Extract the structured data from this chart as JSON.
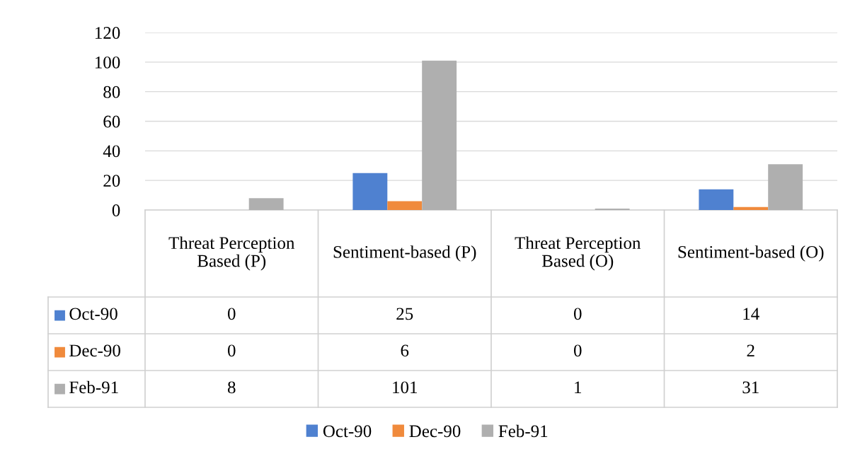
{
  "chart_data": {
    "type": "bar",
    "categories": [
      "Threat Perception Based (P)",
      "Sentiment-based (P)",
      "Threat Perception Based (O)",
      "Sentiment-based (O)"
    ],
    "series": [
      {
        "name": "Oct-90",
        "color": "#4f81d0",
        "values": [
          0,
          25,
          0,
          14
        ]
      },
      {
        "name": "Dec-90",
        "color": "#f08a3c",
        "values": [
          0,
          6,
          0,
          2
        ]
      },
      {
        "name": "Feb-91",
        "color": "#afafaf",
        "values": [
          8,
          101,
          1,
          31
        ]
      }
    ],
    "ylim": [
      0,
      120
    ],
    "yticks": [
      0,
      20,
      40,
      60,
      80,
      100,
      120
    ],
    "grid": "y",
    "legend": "bottom",
    "data_labels": true
  }
}
